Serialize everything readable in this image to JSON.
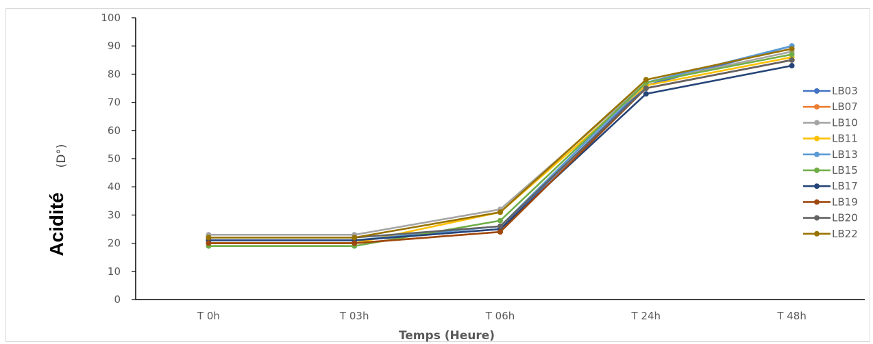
{
  "chart_data": {
    "type": "line",
    "title": "",
    "xlabel": "Temps (Heure)",
    "ylabel": "Acidité",
    "ylabel_unit": "(D°)",
    "categories": [
      "T 0h",
      "T 03h",
      "T 06h",
      "T 24h",
      "T 48h"
    ],
    "ylim": [
      0,
      100
    ],
    "yticks": [
      0,
      10,
      20,
      30,
      40,
      50,
      60,
      70,
      80,
      90,
      100
    ],
    "grid": false,
    "legend_position": "right",
    "series": [
      {
        "name": "LB03",
        "color": "#4472C4",
        "values": [
          21,
          21,
          25,
          76,
          90
        ]
      },
      {
        "name": "LB07",
        "color": "#ED7D31",
        "values": [
          20,
          20,
          24,
          75,
          85
        ]
      },
      {
        "name": "LB10",
        "color": "#A5A5A5",
        "values": [
          23,
          23,
          32,
          77,
          88
        ]
      },
      {
        "name": "LB11",
        "color": "#FFC000",
        "values": [
          20,
          20,
          31,
          76,
          86
        ]
      },
      {
        "name": "LB13",
        "color": "#5B9BD5",
        "values": [
          21,
          21,
          26,
          77,
          90
        ]
      },
      {
        "name": "LB15",
        "color": "#70AD47",
        "values": [
          19,
          19,
          28,
          77,
          87
        ]
      },
      {
        "name": "LB17",
        "color": "#264478",
        "values": [
          21,
          21,
          25,
          73,
          83
        ]
      },
      {
        "name": "LB19",
        "color": "#9E480E",
        "values": [
          20,
          20,
          24,
          75,
          85
        ]
      },
      {
        "name": "LB20",
        "color": "#636363",
        "values": [
          22,
          22,
          26,
          75,
          85
        ]
      },
      {
        "name": "LB22",
        "color": "#997300",
        "values": [
          22,
          22,
          31,
          78,
          89
        ]
      }
    ]
  }
}
